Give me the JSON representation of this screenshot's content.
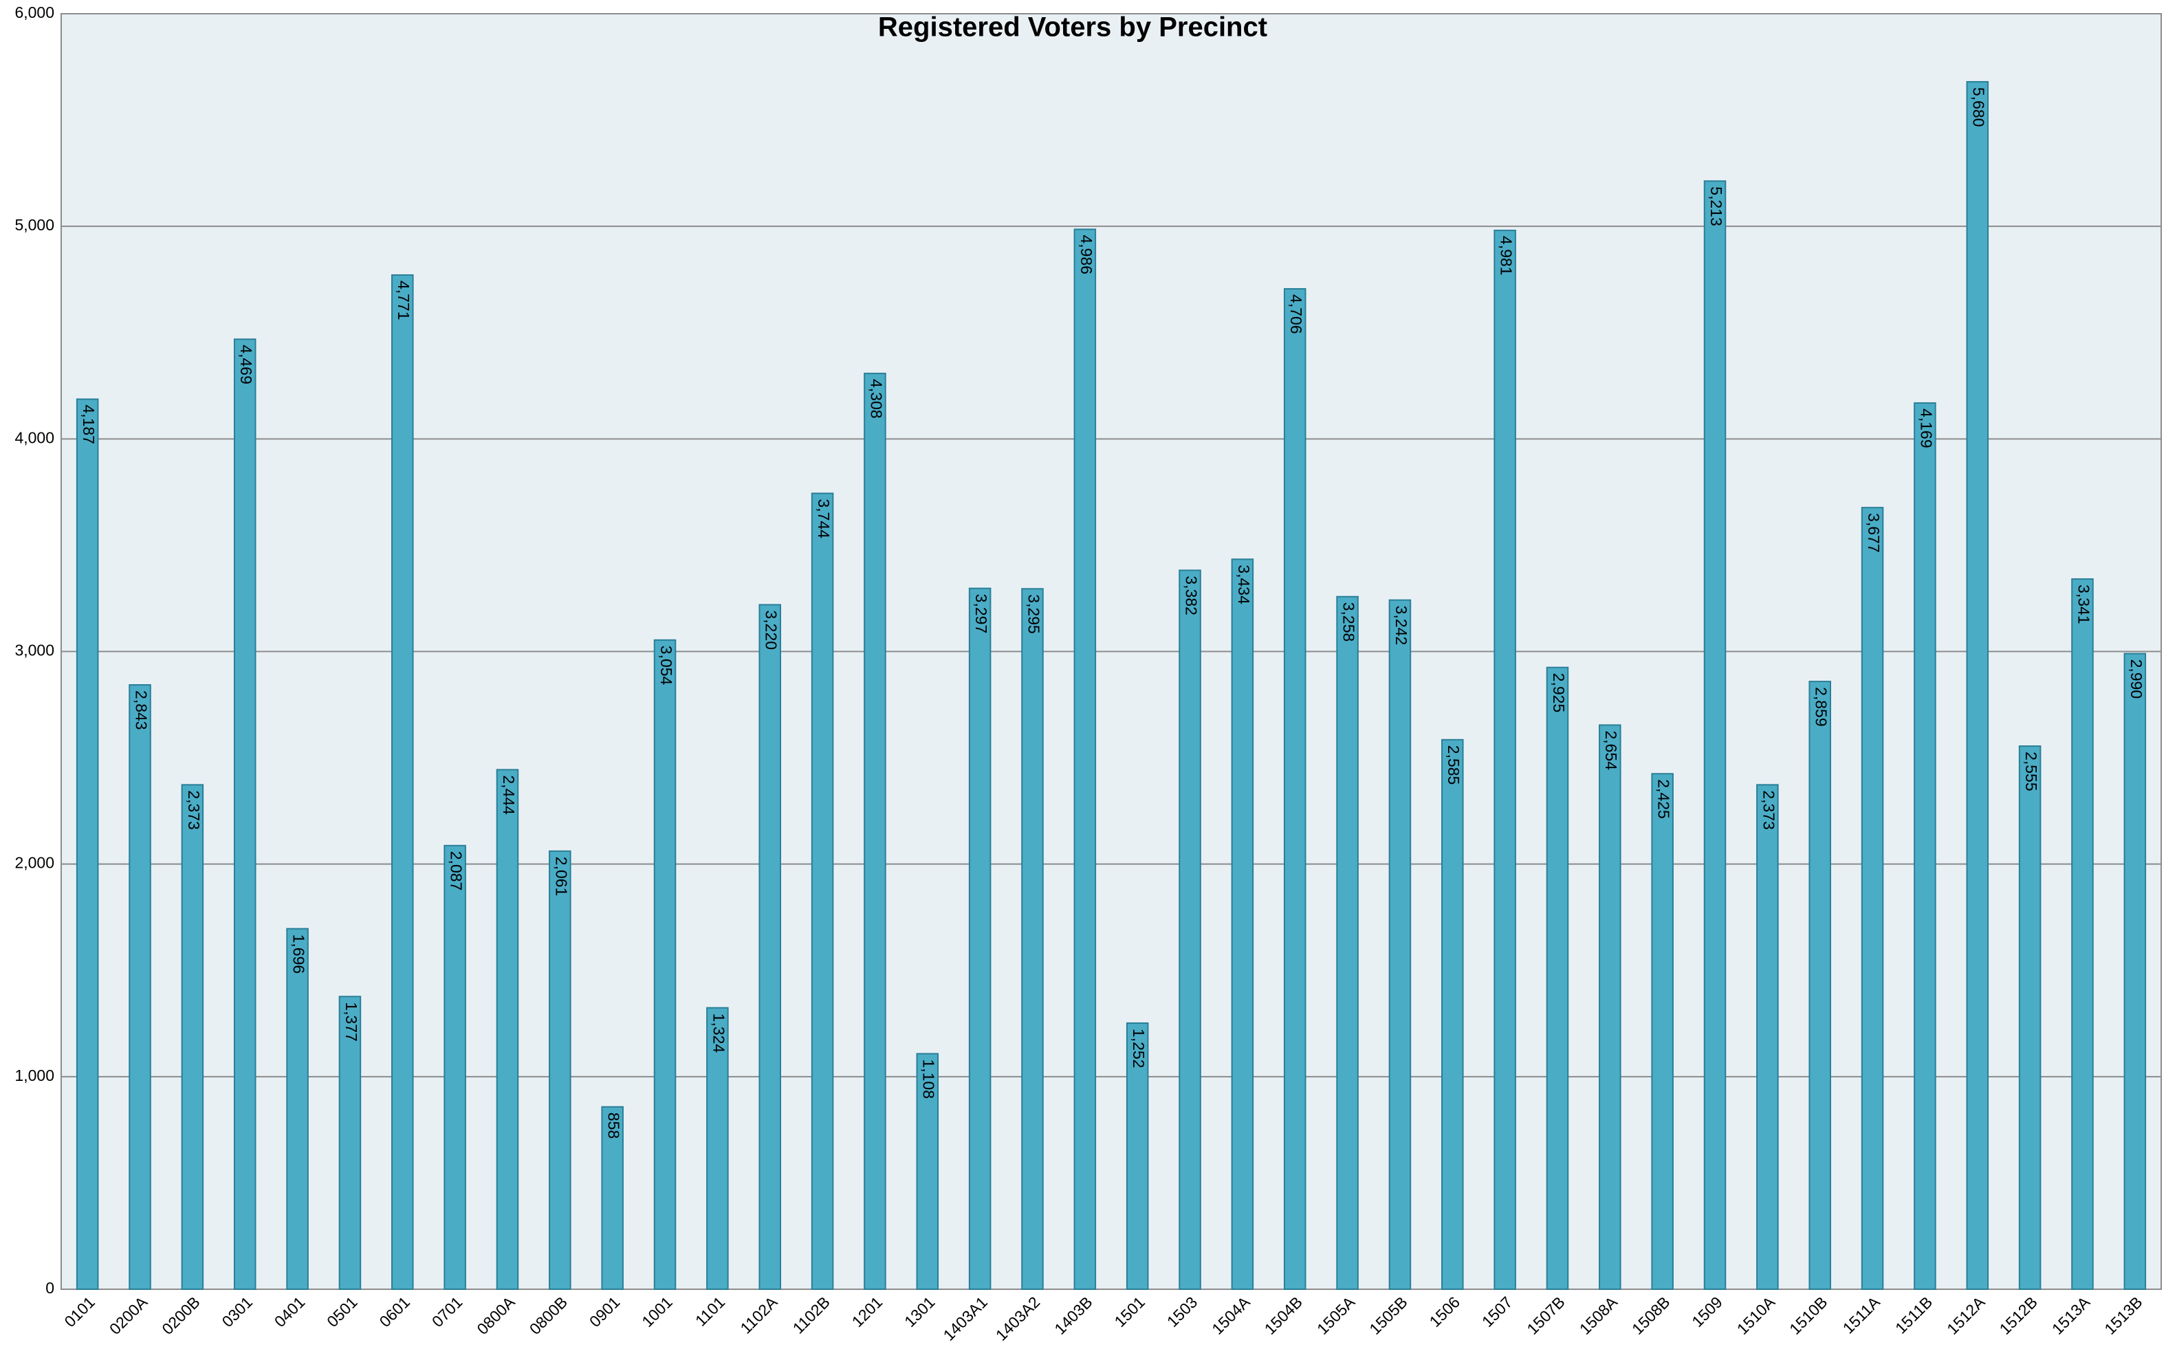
{
  "chart_data": {
    "type": "bar",
    "title": "Registered Voters by Precinct",
    "categories": [
      "0101",
      "0200A",
      "0200B",
      "0301",
      "0401",
      "0501",
      "0601",
      "0701",
      "0800A",
      "0800B",
      "0901",
      "1001",
      "1101",
      "1102A",
      "1102B",
      "1201",
      "1301",
      "1403A1",
      "1403A2",
      "1403B",
      "1501",
      "1503",
      "1504A",
      "1504B",
      "1505A",
      "1505B",
      "1506",
      "1507",
      "1507B",
      "1508A",
      "1508B",
      "1509",
      "1510A",
      "1510B",
      "1511A",
      "1511B",
      "1512A",
      "1512B",
      "1513A",
      "1513B"
    ],
    "values": [
      4187,
      2843,
      2373,
      4469,
      1696,
      1377,
      4771,
      2087,
      2444,
      2061,
      858,
      3054,
      1324,
      3220,
      3744,
      4308,
      1108,
      3297,
      3295,
      4986,
      1252,
      3382,
      3434,
      4706,
      3258,
      3242,
      2585,
      4981,
      2925,
      2654,
      2425,
      5213,
      2373,
      2859,
      3677,
      4169,
      5680,
      2555,
      3341,
      2990
    ],
    "value_labels": [
      "4,187",
      "2,843",
      "2,373",
      "4,469",
      "1,696",
      "1,377",
      "4,771",
      "2,087",
      "2,444",
      "2,061",
      "858",
      "3,054",
      "1,324",
      "3,220",
      "3,744",
      "4,308",
      "1,108",
      "3,297",
      "3,295",
      "4,986",
      "1,252",
      "3,382",
      "3,434",
      "4,706",
      "3,258",
      "3,242",
      "2,585",
      "4,981",
      "2,925",
      "2,654",
      "2,425",
      "5,213",
      "2,373",
      "2,859",
      "3,677",
      "4,169",
      "5,680",
      "2,555",
      "3,341",
      "2,990"
    ],
    "color": "#4bacc6",
    "ylim": [
      0,
      6000
    ],
    "yticks": [
      0,
      {
        "value": 1000,
        "label": "1,000"
      },
      {
        "value": 2000,
        "label": "2,000"
      },
      {
        "value": 3000,
        "label": "3,000"
      },
      {
        "value": 4000,
        "label": "4,000"
      },
      {
        "value": 5000,
        "label": "5,000"
      },
      {
        "value": 6000,
        "label": "6,000"
      }
    ],
    "grid": true
  }
}
